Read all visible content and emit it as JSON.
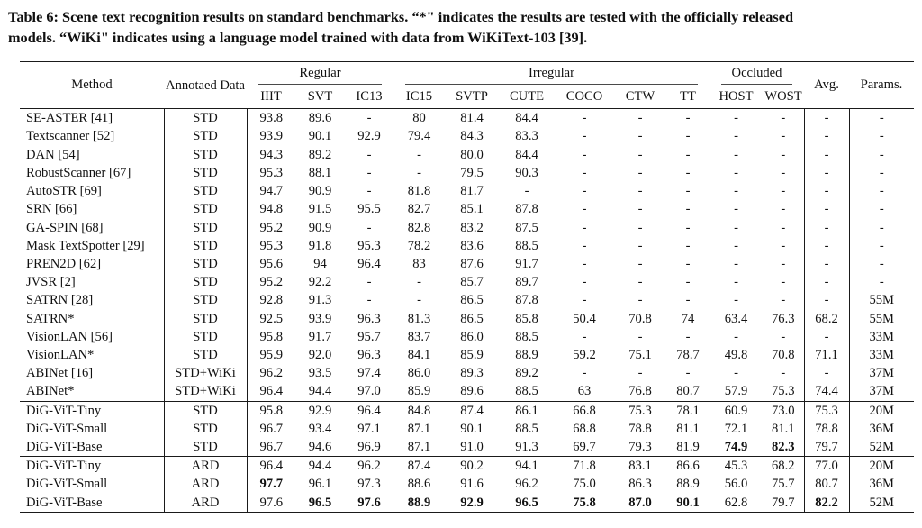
{
  "caption": {
    "line1": "Table 6: Scene text recognition results on standard benchmarks. “*\" indicates the results are tested with the officially released",
    "line2": "models. “WiKi\" indicates using a language model trained with data from WiKiText-103 [39]."
  },
  "table": {
    "groups": {
      "regular": "Regular",
      "irregular": "Irregular",
      "occluded": "Occluded"
    },
    "headers": {
      "method": "Method",
      "annotated_data": "Annotaed Data",
      "avg": "Avg.",
      "params": "Params.",
      "datasets": [
        "IIIT",
        "SVT",
        "IC13",
        "IC15",
        "SVTP",
        "CUTE",
        "COCO",
        "CTW",
        "TT",
        "HOST",
        "WOST"
      ]
    },
    "rows": [
      {
        "method": "SE-ASTER [41]",
        "data": "STD",
        "values": [
          "93.8",
          "89.6",
          "-",
          "80",
          "81.4",
          "84.4",
          "-",
          "-",
          "-",
          "-",
          "-",
          "-",
          "-"
        ],
        "bold": [],
        "section_end": false
      },
      {
        "method": "Textscanner [52]",
        "data": "STD",
        "values": [
          "93.9",
          "90.1",
          "92.9",
          "79.4",
          "84.3",
          "83.3",
          "-",
          "-",
          "-",
          "-",
          "-",
          "-",
          "-"
        ],
        "bold": [],
        "section_end": false
      },
      {
        "method": "DAN [54]",
        "data": "STD",
        "values": [
          "94.3",
          "89.2",
          "-",
          "-",
          "80.0",
          "84.4",
          "-",
          "-",
          "-",
          "-",
          "-",
          "-",
          "-"
        ],
        "bold": [],
        "section_end": false
      },
      {
        "method": "RobustScanner [67]",
        "data": "STD",
        "values": [
          "95.3",
          "88.1",
          "-",
          "-",
          "79.5",
          "90.3",
          "-",
          "-",
          "-",
          "-",
          "-",
          "-",
          "-"
        ],
        "bold": [],
        "section_end": false
      },
      {
        "method": "AutoSTR [69]",
        "data": "STD",
        "values": [
          "94.7",
          "90.9",
          "-",
          "81.8",
          "81.7",
          "-",
          "-",
          "-",
          "-",
          "-",
          "-",
          "-",
          "-"
        ],
        "bold": [],
        "section_end": false
      },
      {
        "method": "SRN [66]",
        "data": "STD",
        "values": [
          "94.8",
          "91.5",
          "95.5",
          "82.7",
          "85.1",
          "87.8",
          "-",
          "-",
          "-",
          "-",
          "-",
          "-",
          "-"
        ],
        "bold": [],
        "section_end": false
      },
      {
        "method": "GA-SPIN [68]",
        "data": "STD",
        "values": [
          "95.2",
          "90.9",
          "-",
          "82.8",
          "83.2",
          "87.5",
          "-",
          "-",
          "-",
          "-",
          "-",
          "-",
          "-"
        ],
        "bold": [],
        "section_end": false
      },
      {
        "method": "Mask TextSpotter [29]",
        "data": "STD",
        "values": [
          "95.3",
          "91.8",
          "95.3",
          "78.2",
          "83.6",
          "88.5",
          "-",
          "-",
          "-",
          "-",
          "-",
          "-",
          "-"
        ],
        "bold": [],
        "section_end": false
      },
      {
        "method": "PREN2D [62]",
        "data": "STD",
        "values": [
          "95.6",
          "94",
          "96.4",
          "83",
          "87.6",
          "91.7",
          "-",
          "-",
          "-",
          "-",
          "-",
          "-",
          "-"
        ],
        "bold": [],
        "section_end": false
      },
      {
        "method": "JVSR [2]",
        "data": "STD",
        "values": [
          "95.2",
          "92.2",
          "-",
          "-",
          "85.7",
          "89.7",
          "-",
          "-",
          "-",
          "-",
          "-",
          "-",
          "-"
        ],
        "bold": [],
        "section_end": false
      },
      {
        "method": "SATRN [28]",
        "data": "STD",
        "values": [
          "92.8",
          "91.3",
          "-",
          "-",
          "86.5",
          "87.8",
          "-",
          "-",
          "-",
          "-",
          "-",
          "-",
          "55M"
        ],
        "bold": [],
        "section_end": false
      },
      {
        "method": "SATRN*",
        "data": "STD",
        "values": [
          "92.5",
          "93.9",
          "96.3",
          "81.3",
          "86.5",
          "85.8",
          "50.4",
          "70.8",
          "74",
          "63.4",
          "76.3",
          "68.2",
          "55M"
        ],
        "bold": [],
        "section_end": false
      },
      {
        "method": "VisionLAN [56]",
        "data": "STD",
        "values": [
          "95.8",
          "91.7",
          "95.7",
          "83.7",
          "86.0",
          "88.5",
          "-",
          "-",
          "-",
          "-",
          "-",
          "-",
          "33M"
        ],
        "bold": [],
        "section_end": false
      },
      {
        "method": "VisionLAN*",
        "data": "STD",
        "values": [
          "95.9",
          "92.0",
          "96.3",
          "84.1",
          "85.9",
          "88.9",
          "59.2",
          "75.1",
          "78.7",
          "49.8",
          "70.8",
          "71.1",
          "33M"
        ],
        "bold": [],
        "section_end": false
      },
      {
        "method": "ABINet [16]",
        "data": "STD+WiKi",
        "values": [
          "96.2",
          "93.5",
          "97.4",
          "86.0",
          "89.3",
          "89.2",
          "-",
          "-",
          "-",
          "-",
          "-",
          "-",
          "37M"
        ],
        "bold": [],
        "section_end": false
      },
      {
        "method": "ABINet*",
        "data": "STD+WiKi",
        "values": [
          "96.4",
          "94.4",
          "97.0",
          "85.9",
          "89.6",
          "88.5",
          "63",
          "76.8",
          "80.7",
          "57.9",
          "75.3",
          "74.4",
          "37M"
        ],
        "bold": [],
        "section_end": true
      },
      {
        "method": "DiG-ViT-Tiny",
        "data": "STD",
        "values": [
          "95.8",
          "92.9",
          "96.4",
          "84.8",
          "87.4",
          "86.1",
          "66.8",
          "75.3",
          "78.1",
          "60.9",
          "73.0",
          "75.3",
          "20M"
        ],
        "bold": [],
        "section_end": false
      },
      {
        "method": "DiG-ViT-Small",
        "data": "STD",
        "values": [
          "96.7",
          "93.4",
          "97.1",
          "87.1",
          "90.1",
          "88.5",
          "68.8",
          "78.8",
          "81.1",
          "72.1",
          "81.1",
          "78.8",
          "36M"
        ],
        "bold": [],
        "section_end": false
      },
      {
        "method": "DiG-ViT-Base",
        "data": "STD",
        "values": [
          "96.7",
          "94.6",
          "96.9",
          "87.1",
          "91.0",
          "91.3",
          "69.7",
          "79.3",
          "81.9",
          "74.9",
          "82.3",
          "79.7",
          "52M"
        ],
        "bold": [
          9,
          10
        ],
        "section_end": true
      },
      {
        "method": "DiG-ViT-Tiny",
        "data": "ARD",
        "values": [
          "96.4",
          "94.4",
          "96.2",
          "87.4",
          "90.2",
          "94.1",
          "71.8",
          "83.1",
          "86.6",
          "45.3",
          "68.2",
          "77.0",
          "20M"
        ],
        "bold": [],
        "section_end": false
      },
      {
        "method": "DiG-ViT-Small",
        "data": "ARD",
        "values": [
          "97.7",
          "96.1",
          "97.3",
          "88.6",
          "91.6",
          "96.2",
          "75.0",
          "86.3",
          "88.9",
          "56.0",
          "75.7",
          "80.7",
          "36M"
        ],
        "bold": [
          0
        ],
        "section_end": false
      },
      {
        "method": "DiG-ViT-Base",
        "data": "ARD",
        "values": [
          "97.6",
          "96.5",
          "97.6",
          "88.9",
          "92.9",
          "96.5",
          "75.8",
          "87.0",
          "90.1",
          "62.8",
          "79.7",
          "82.2",
          "52M"
        ],
        "bold": [
          1,
          2,
          3,
          4,
          5,
          6,
          7,
          8,
          11
        ],
        "section_end": false
      }
    ]
  }
}
